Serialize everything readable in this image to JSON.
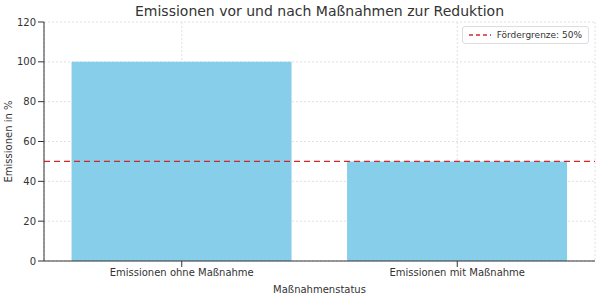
{
  "chart_data": {
    "type": "bar",
    "title": "Emissionen vor und nach Maßnahmen zur Reduktion",
    "x_label": "Maßnahmenstatus",
    "y_label": "Emissionen in %",
    "categories": [
      "Emissionen ohne Maßnahme",
      "Emissionen mit Maßnahme"
    ],
    "values": [
      100,
      50
    ],
    "color": "#87ceeb",
    "ylim": [
      0,
      120
    ],
    "yticks": [
      0,
      20,
      40,
      60,
      80,
      100,
      120
    ],
    "grid": true,
    "legend": "upper right",
    "reference_line": {
      "value": 50,
      "label": "Fördergrenze: 50%",
      "color": "#d62728",
      "line_style": "dashed"
    }
  }
}
